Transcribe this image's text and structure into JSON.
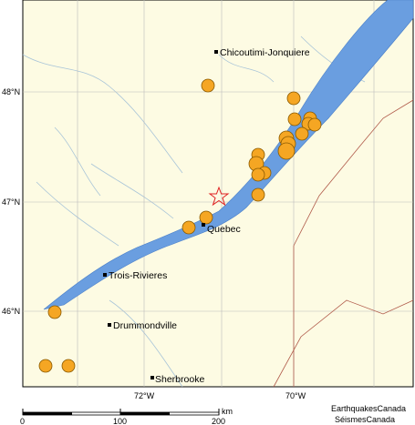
{
  "map": {
    "cities": [
      "Chicoutimi-Jonquiere",
      "Quebec",
      "Trois-Rivieres",
      "Drummondville",
      "Sherbrooke"
    ],
    "latitude_labels": [
      "48°N",
      "47°N",
      "46°N"
    ],
    "longitude_labels": [
      "72°W",
      "70°W"
    ],
    "scale": {
      "labels": [
        "0",
        "100",
        "200"
      ],
      "unit": "km"
    },
    "credits": [
      "EarthquakesCanada",
      "SéismesCanada"
    ]
  }
}
